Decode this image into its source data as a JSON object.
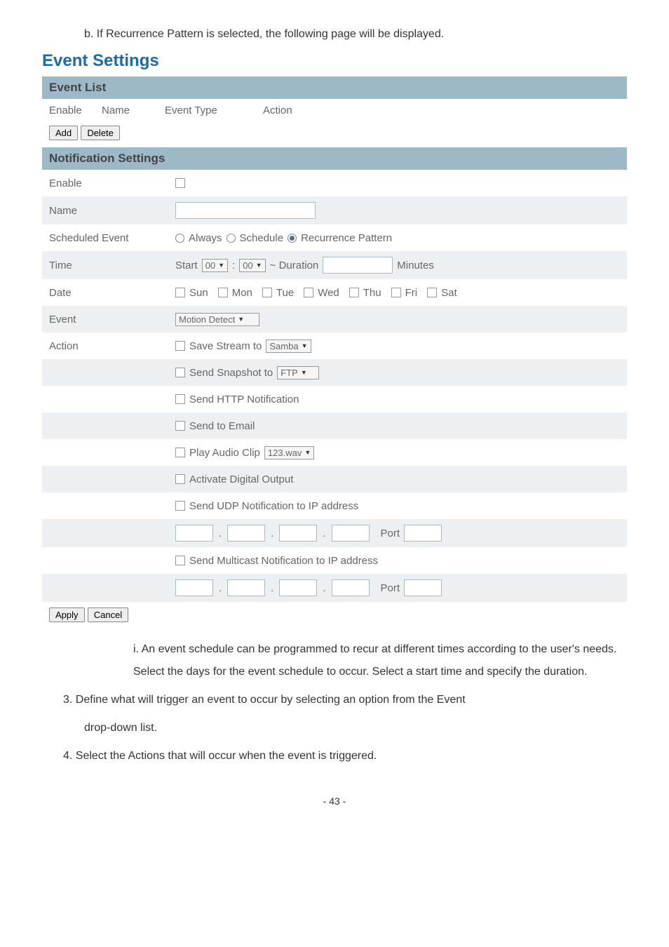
{
  "intro_text": "b.  If Recurrence Pattern is selected, the following page will be displayed.",
  "heading": "Event Settings",
  "event_list": {
    "title": "Event List",
    "columns": [
      "Enable",
      "Name",
      "Event Type",
      "Action"
    ],
    "add_btn": "Add",
    "delete_btn": "Delete"
  },
  "notification": {
    "title": "Notification Settings",
    "rows": {
      "enable_label": "Enable",
      "name_label": "Name",
      "scheduled_label": "Scheduled Event",
      "scheduled_options": {
        "always": "Always",
        "schedule": "Schedule",
        "recurrence": "Recurrence Pattern"
      },
      "scheduled_selected": "recurrence",
      "time_label": "Time",
      "time_start": "Start",
      "time_hh": "00",
      "time_mm": "00",
      "time_sep": ":",
      "time_duration": "~ Duration",
      "time_minutes": "Minutes",
      "date_label": "Date",
      "days": [
        "Sun",
        "Mon",
        "Tue",
        "Wed",
        "Thu",
        "Fri",
        "Sat"
      ],
      "event_label": "Event",
      "event_value": "Motion Detect",
      "action_label": "Action",
      "save_stream": "Save Stream to",
      "save_stream_val": "Samba",
      "send_snapshot": "Send Snapshot to",
      "send_snapshot_val": "FTP",
      "send_http": "Send HTTP Notification",
      "send_email": "Send to Email",
      "play_audio": "Play Audio Clip",
      "play_audio_val": "123.wav",
      "activate_digital": "Activate Digital Output",
      "send_udp": "Send UDP Notification to IP address",
      "send_multicast": "Send Multicast Notification to IP address",
      "port": "Port"
    },
    "apply_btn": "Apply",
    "cancel_btn": "Cancel"
  },
  "after_i": "i.     An event schedule can be programmed to recur at different times according to the user's needs. Select the days for the event schedule to occur.   Select a start time and specify the duration.",
  "item3_head": "3.  Define what will trigger an event to occur by selecting an option from the Event",
  "item3_body": "drop-down list.",
  "item4": "4.  Select the Actions that will occur when the event is triggered.",
  "page_number": "- 43 -"
}
